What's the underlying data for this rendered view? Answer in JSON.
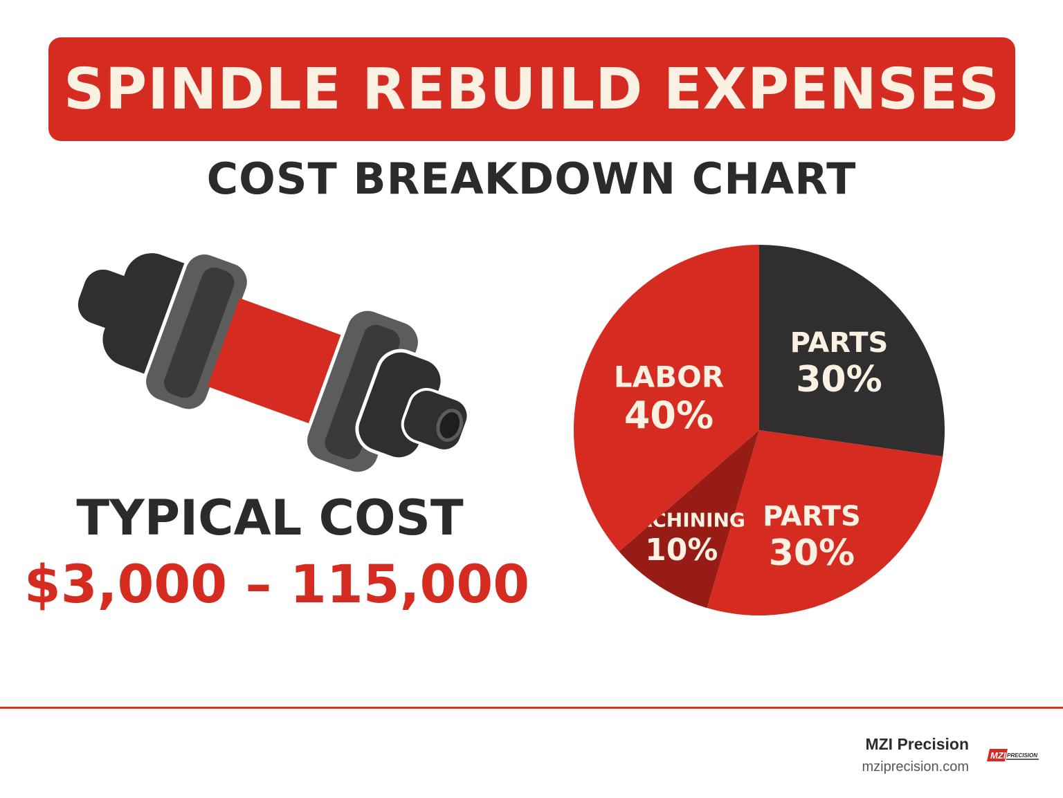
{
  "header": {
    "title": "SPINDLE REBUILD EXPENSES",
    "subtitle": "COST BREAKDOWN CHART"
  },
  "cost": {
    "label": "TYPICAL COST",
    "value": "$3,000 – 115,000"
  },
  "chart_data": {
    "type": "pie",
    "title": "COST BREAKDOWN CHART",
    "slices": [
      {
        "label": "PARTS",
        "value": 30,
        "value_label": "30%",
        "color": "#2f2f2f"
      },
      {
        "label": "PARTS",
        "value": 30,
        "value_label": "30%",
        "color": "#d52b20"
      },
      {
        "label": "MACHINING",
        "value": 10,
        "value_label": "10%",
        "color": "#981c16"
      },
      {
        "label": "LABOR",
        "value": 40,
        "value_label": "40%",
        "color": "#d52b20"
      }
    ]
  },
  "footer": {
    "company": "MZI Precision",
    "url": "mziprecision.com",
    "logo_text": "MZI",
    "logo_subtext": "PRECISION"
  },
  "colors": {
    "accent": "#d52b20",
    "dark": "#2b2b2b",
    "cream": "#fbf1e3"
  },
  "icons": [
    "spindle-illustration",
    "mzi-logo"
  ]
}
